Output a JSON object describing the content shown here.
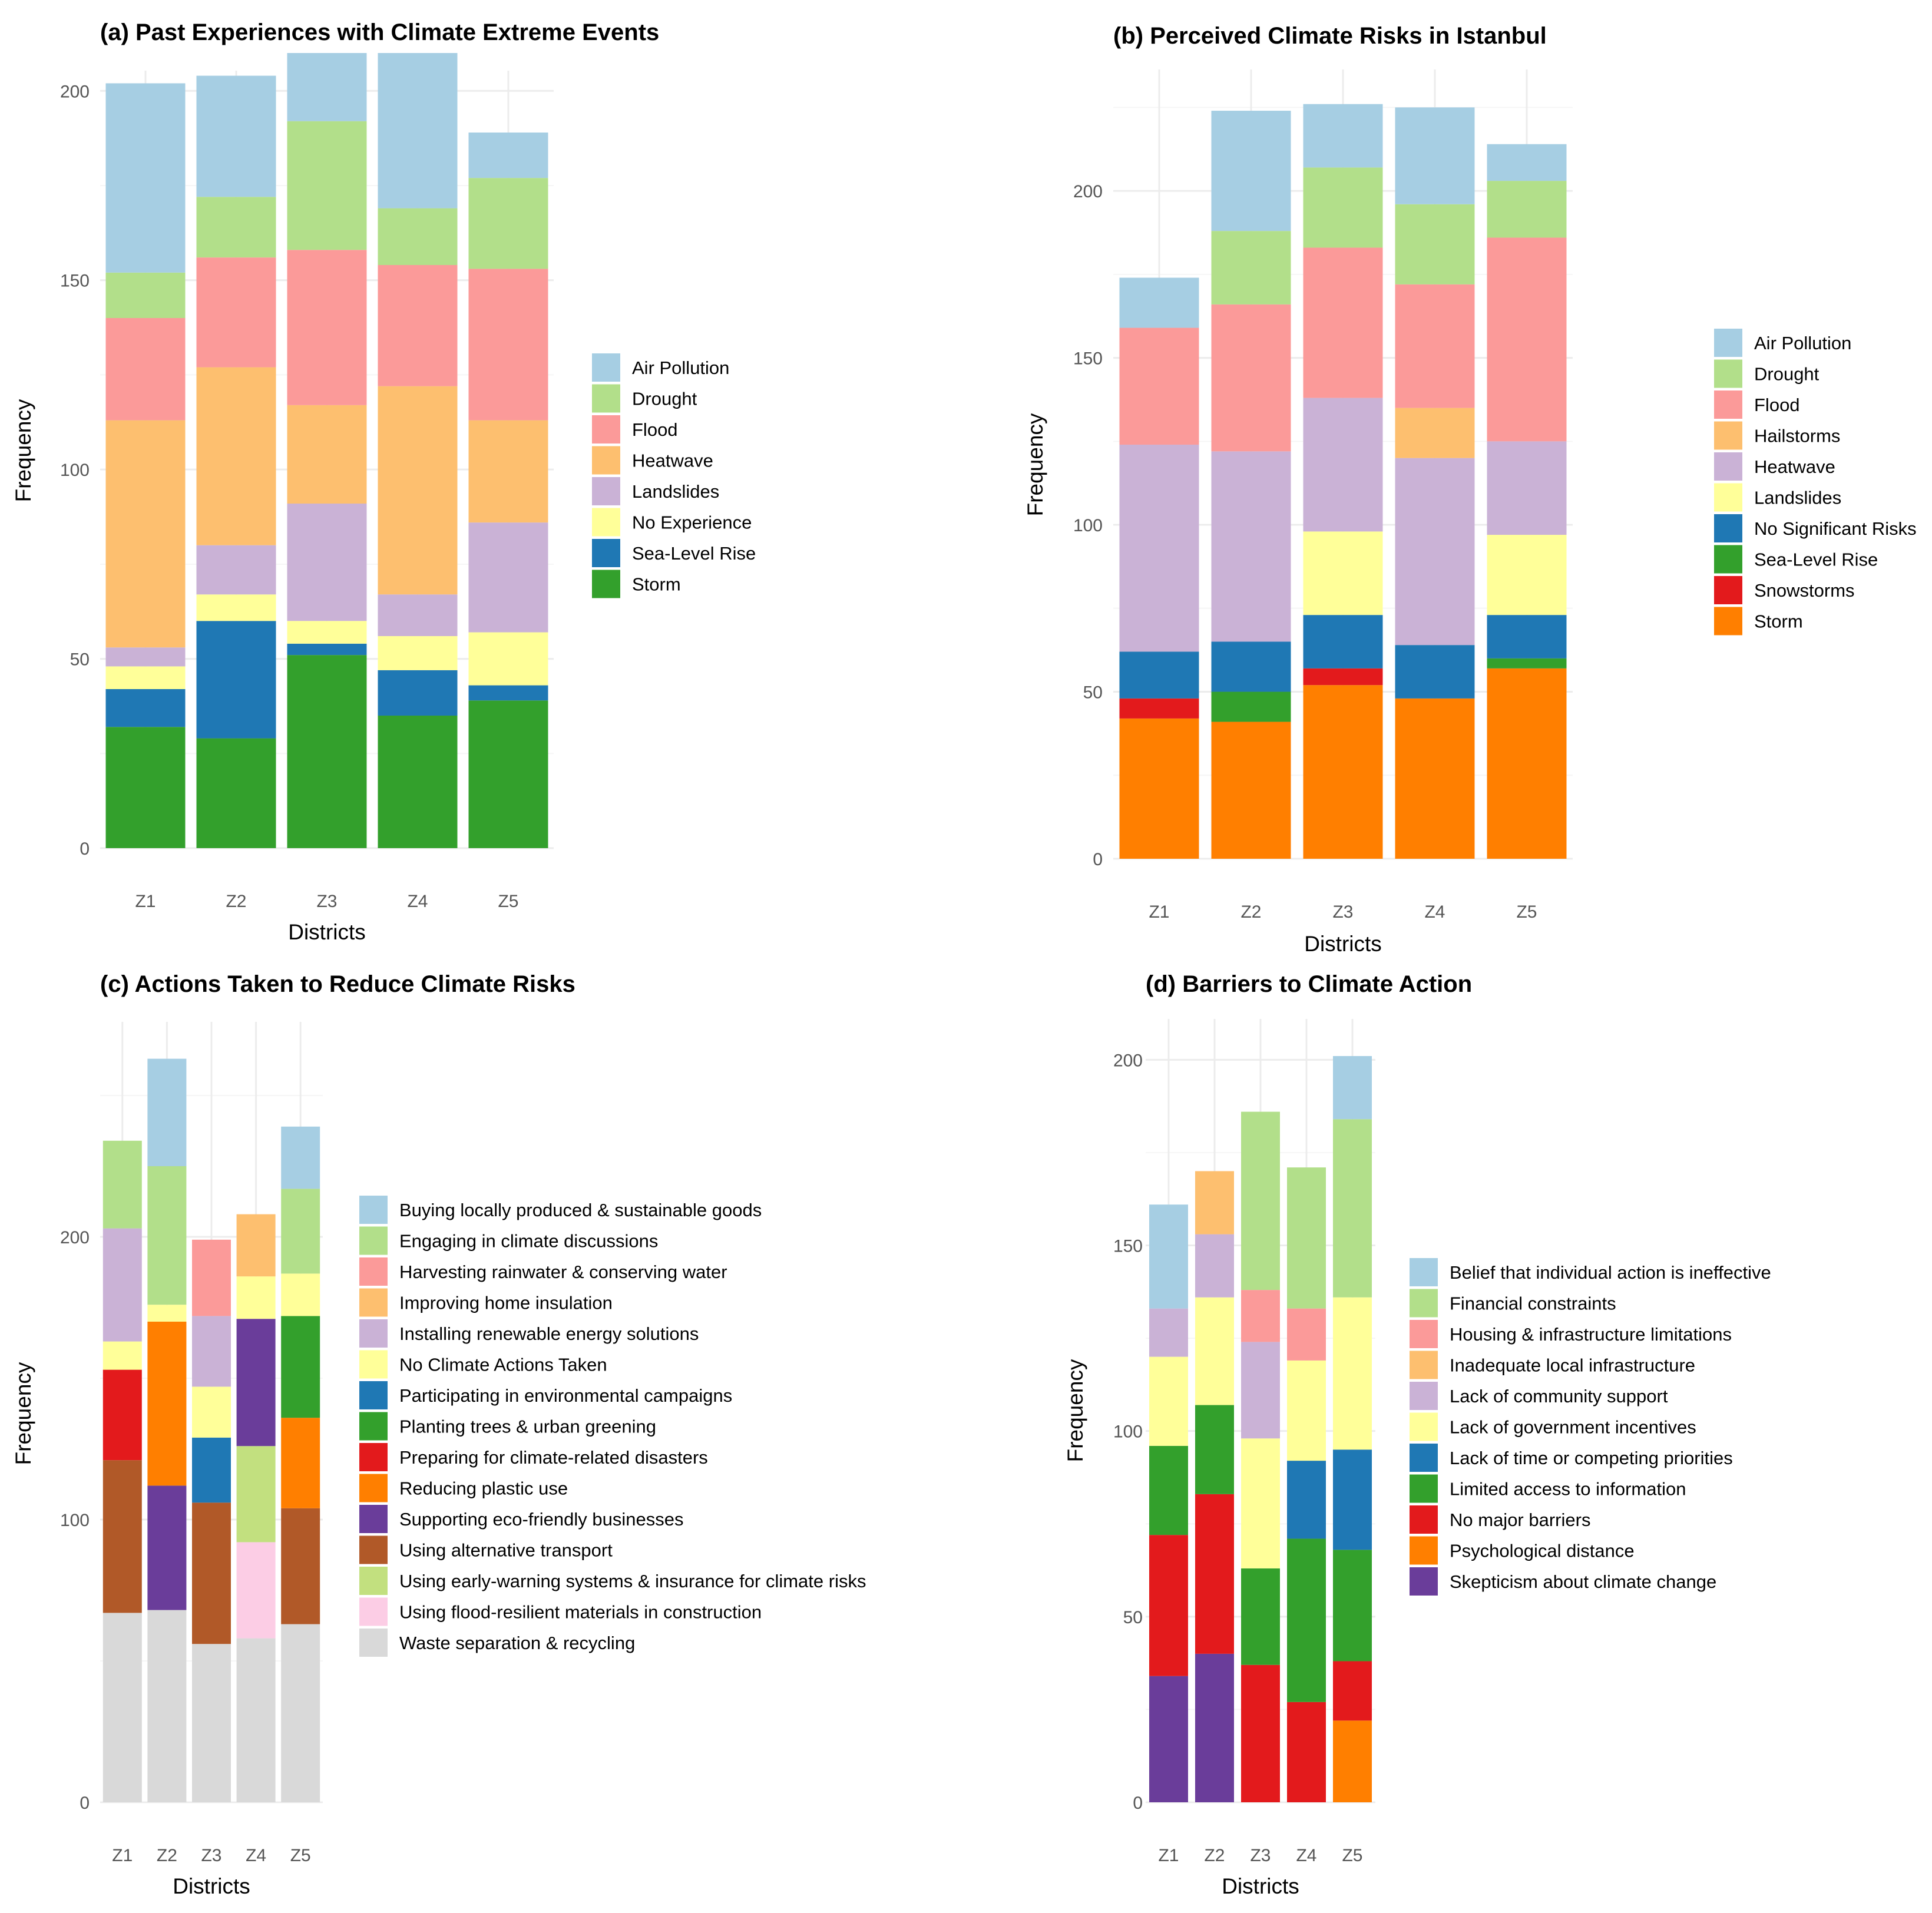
{
  "chart_data": [
    {
      "id": "a",
      "type": "bar",
      "stacked": true,
      "title": "(a) Past Experiences with Climate Extreme Events",
      "xlabel": "Districts",
      "ylabel": "Frequency",
      "categories": [
        "Z1",
        "Z2",
        "Z3",
        "Z4",
        "Z5"
      ],
      "ylim": [
        0,
        210
      ],
      "yticks": [
        0,
        50,
        100,
        150,
        200
      ],
      "legend_position": "right",
      "series": [
        {
          "name": "Air Pollution",
          "color": "#a6cee3",
          "values": [
            50,
            32,
            18,
            41,
            12
          ]
        },
        {
          "name": "Drought",
          "color": "#b2df8a",
          "values": [
            12,
            16,
            34,
            15,
            24
          ]
        },
        {
          "name": "Flood",
          "color": "#fb9a99",
          "values": [
            27,
            29,
            41,
            32,
            40
          ]
        },
        {
          "name": "Heatwave",
          "color": "#fdbf6f",
          "values": [
            60,
            47,
            26,
            55,
            27
          ]
        },
        {
          "name": "Landslides",
          "color": "#cab2d6",
          "values": [
            5,
            13,
            31,
            11,
            29
          ]
        },
        {
          "name": "No Experience",
          "color": "#ffff99",
          "values": [
            6,
            7,
            6,
            9,
            14
          ]
        },
        {
          "name": "Sea-Level Rise",
          "color": "#1f78b4",
          "values": [
            10,
            31,
            3,
            12,
            4
          ]
        },
        {
          "name": "Storm",
          "color": "#33a02c",
          "values": [
            32,
            29,
            51,
            35,
            39
          ]
        }
      ]
    },
    {
      "id": "b",
      "type": "bar",
      "stacked": true,
      "title": "(b) Perceived Climate Risks in Istanbul",
      "xlabel": "Districts",
      "ylabel": "Frequency",
      "categories": [
        "Z1",
        "Z2",
        "Z3",
        "Z4",
        "Z5"
      ],
      "ylim": [
        0,
        236
      ],
      "yticks": [
        0,
        50,
        100,
        150,
        200
      ],
      "legend_position": "right",
      "series": [
        {
          "name": "Air Pollution",
          "color": "#a6cee3",
          "values": [
            15,
            36,
            19,
            29,
            11
          ]
        },
        {
          "name": "Drought",
          "color": "#b2df8a",
          "values": [
            0,
            22,
            24,
            24,
            17
          ]
        },
        {
          "name": "Flood",
          "color": "#fb9a99",
          "values": [
            35,
            44,
            45,
            37,
            61
          ]
        },
        {
          "name": "Hailstorms",
          "color": "#fdbf6f",
          "values": [
            0,
            0,
            0,
            15,
            0
          ]
        },
        {
          "name": "Heatwave",
          "color": "#cab2d6",
          "values": [
            62,
            57,
            40,
            56,
            28
          ]
        },
        {
          "name": "Landslides",
          "color": "#ffff99",
          "values": [
            0,
            0,
            25,
            0,
            24
          ]
        },
        {
          "name": "No Significant Risks",
          "color": "#1f78b4",
          "values": [
            14,
            15,
            16,
            16,
            13
          ]
        },
        {
          "name": "Sea-Level Rise",
          "color": "#33a02c",
          "values": [
            0,
            9,
            0,
            0,
            3
          ]
        },
        {
          "name": "Snowstorms",
          "color": "#e31a1c",
          "values": [
            6,
            0,
            5,
            0,
            0
          ]
        },
        {
          "name": "Storm",
          "color": "#ff7f00",
          "values": [
            42,
            41,
            52,
            48,
            57
          ]
        }
      ]
    },
    {
      "id": "c",
      "type": "bar",
      "stacked": true,
      "title": "(c) Actions Taken to Reduce Climate Risks",
      "xlabel": "Districts",
      "ylabel": "Frequency",
      "categories": [
        "Z1",
        "Z2",
        "Z3",
        "Z4",
        "Z5"
      ],
      "ylim": [
        0,
        275
      ],
      "yticks": [
        0,
        100,
        200
      ],
      "legend_position": "right",
      "series": [
        {
          "name": "Buying locally produced & sustainable goods",
          "color": "#a6cee3",
          "values": [
            0,
            38,
            0,
            0,
            22
          ]
        },
        {
          "name": "Engaging in climate discussions",
          "color": "#b2df8a",
          "values": [
            31,
            49,
            0,
            0,
            30
          ]
        },
        {
          "name": "Harvesting rainwater & conserving water",
          "color": "#fb9a99",
          "values": [
            0,
            0,
            27,
            0,
            0
          ]
        },
        {
          "name": "Improving home insulation",
          "color": "#fdbf6f",
          "values": [
            0,
            0,
            0,
            22,
            0
          ]
        },
        {
          "name": "Installing renewable energy solutions",
          "color": "#cab2d6",
          "values": [
            40,
            0,
            25,
            0,
            0
          ]
        },
        {
          "name": "No Climate Actions Taken",
          "color": "#ffff99",
          "values": [
            10,
            6,
            18,
            15,
            15
          ]
        },
        {
          "name": "Participating in environmental campaigns",
          "color": "#1f78b4",
          "values": [
            0,
            0,
            23,
            0,
            0
          ]
        },
        {
          "name": "Planting trees & urban greening",
          "color": "#33a02c",
          "values": [
            0,
            0,
            0,
            0,
            36
          ]
        },
        {
          "name": "Preparing for climate-related disasters",
          "color": "#e31a1c",
          "values": [
            32,
            0,
            0,
            0,
            0
          ]
        },
        {
          "name": "Reducing plastic use",
          "color": "#ff7f00",
          "values": [
            0,
            58,
            0,
            0,
            32
          ]
        },
        {
          "name": "Supporting eco-friendly businesses",
          "color": "#6a3d9a",
          "values": [
            0,
            44,
            0,
            45,
            0
          ]
        },
        {
          "name": "Using alternative transport",
          "color": "#b15928",
          "values": [
            54,
            0,
            50,
            0,
            41
          ]
        },
        {
          "name": "Using early-warning systems & insurance for climate risks",
          "color": "#c2e07f",
          "values": [
            0,
            0,
            0,
            34,
            0
          ]
        },
        {
          "name": "Using flood-resilient materials in construction",
          "color": "#fccde5",
          "values": [
            0,
            0,
            0,
            34,
            0
          ]
        },
        {
          "name": "Waste separation & recycling",
          "color": "#d9d9d9",
          "values": [
            67,
            68,
            56,
            58,
            63
          ]
        }
      ]
    },
    {
      "id": "d",
      "type": "bar",
      "stacked": true,
      "title": "(d) Barriers to Climate Action",
      "xlabel": "Districts",
      "ylabel": "Frequency",
      "categories": [
        "Z1",
        "Z2",
        "Z3",
        "Z4",
        "Z5"
      ],
      "ylim": [
        0,
        211
      ],
      "yticks": [
        0,
        50,
        100,
        150,
        200
      ],
      "legend_position": "right",
      "series": [
        {
          "name": "Belief that individual action is ineffective",
          "color": "#a6cee3",
          "values": [
            28,
            0,
            0,
            0,
            17
          ]
        },
        {
          "name": "Financial constraints",
          "color": "#b2df8a",
          "values": [
            0,
            0,
            48,
            38,
            48
          ]
        },
        {
          "name": "Housing & infrastructure limitations",
          "color": "#fb9a99",
          "values": [
            0,
            0,
            14,
            14,
            0
          ]
        },
        {
          "name": "Inadequate local infrastructure",
          "color": "#fdbf6f",
          "values": [
            0,
            17,
            0,
            0,
            0
          ]
        },
        {
          "name": "Lack of community support",
          "color": "#cab2d6",
          "values": [
            13,
            17,
            26,
            0,
            0
          ]
        },
        {
          "name": "Lack of government incentives",
          "color": "#ffff99",
          "values": [
            24,
            29,
            35,
            27,
            41
          ]
        },
        {
          "name": "Lack of time or competing priorities",
          "color": "#1f78b4",
          "values": [
            0,
            0,
            0,
            21,
            27
          ]
        },
        {
          "name": "Limited access to information",
          "color": "#33a02c",
          "values": [
            24,
            24,
            26,
            44,
            30
          ]
        },
        {
          "name": "No major barriers",
          "color": "#e31a1c",
          "values": [
            38,
            43,
            37,
            27,
            16
          ]
        },
        {
          "name": "Psychological distance",
          "color": "#ff7f00",
          "values": [
            0,
            0,
            0,
            0,
            22
          ]
        },
        {
          "name": "Skepticism about climate change",
          "color": "#6a3d9a",
          "values": [
            34,
            40,
            0,
            0,
            0
          ]
        }
      ]
    }
  ]
}
